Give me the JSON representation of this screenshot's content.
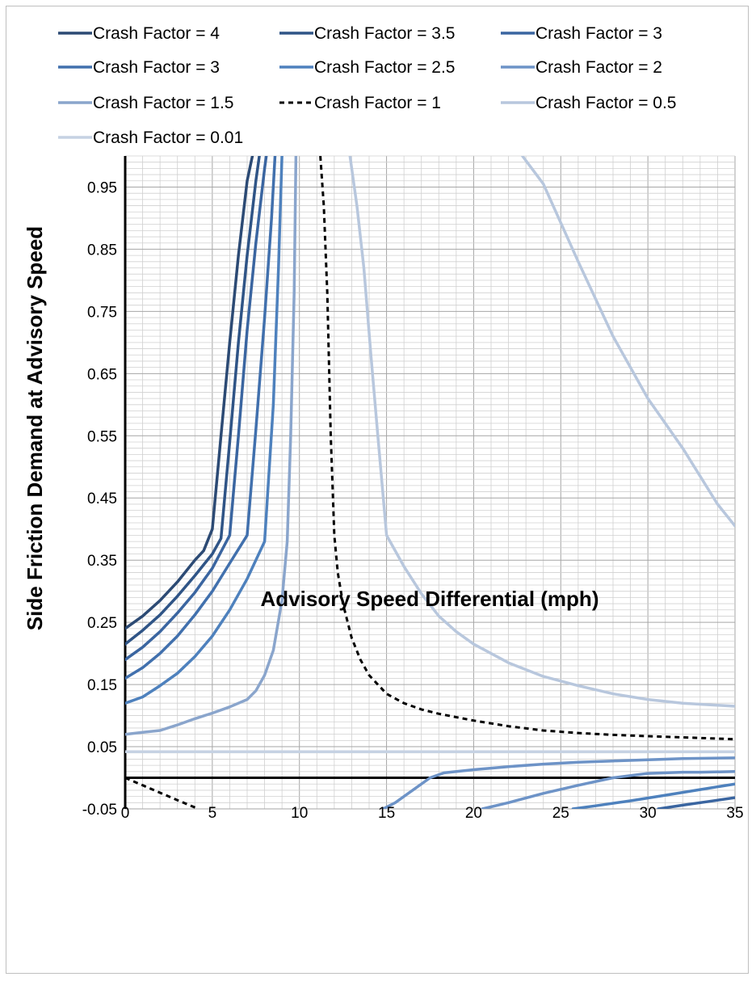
{
  "chart_data": {
    "type": "line",
    "xlabel": "Advisory Speed Differential (mph)",
    "ylabel": "Side Friction Demand at Advisory Speed",
    "xlim": [
      0,
      35
    ],
    "ylim": [
      -0.05,
      1.0
    ],
    "x_ticks": [
      0,
      5,
      10,
      15,
      20,
      25,
      30,
      35
    ],
    "x_tick_labels": [
      "0",
      "5",
      "10",
      "15",
      "20",
      "25",
      "30",
      "35"
    ],
    "y_ticks": [
      -0.05,
      0.05,
      0.15,
      0.25,
      0.35,
      0.45,
      0.55,
      0.65,
      0.75,
      0.85,
      0.95
    ],
    "y_tick_labels": [
      "-0.05",
      "0.05",
      "0.15",
      "0.25",
      "0.35",
      "0.45",
      "0.55",
      "0.65",
      "0.75",
      "0.85",
      "0.95"
    ],
    "grid": true,
    "legend_position": "top",
    "series": [
      {
        "name": "Crash Factor = 4",
        "color": "#2c4a74",
        "dash": false,
        "x": [
          0,
          1,
          2,
          3,
          4,
          4.5,
          5,
          5.5,
          6,
          6.5,
          7,
          7.3
        ],
        "y": [
          0.24,
          0.26,
          0.285,
          0.315,
          0.35,
          0.365,
          0.4,
          0.55,
          0.7,
          0.84,
          0.96,
          1.0
        ]
      },
      {
        "name": "Crash Factor = 3.5",
        "color": "#2f5486",
        "dash": false,
        "x": [
          0,
          1,
          2,
          3,
          4,
          5,
          5.5,
          6,
          6.5,
          7,
          7.5,
          7.7
        ],
        "y": [
          0.215,
          0.237,
          0.262,
          0.292,
          0.325,
          0.36,
          0.385,
          0.54,
          0.7,
          0.84,
          0.96,
          1.0
        ]
      },
      {
        "name": "Crash Factor = 3",
        "color": "#3a65a0",
        "dash": false,
        "x": [
          0,
          1,
          2,
          3,
          4,
          5,
          6,
          6.5,
          7,
          7.5,
          8,
          8.1
        ],
        "y": [
          0.19,
          0.21,
          0.235,
          0.265,
          0.298,
          0.337,
          0.39,
          0.55,
          0.72,
          0.86,
          0.98,
          1.0
        ]
      },
      {
        "name": "Crash Factor = 3",
        "color": "#4170ad",
        "dash": false,
        "x": [
          0,
          1,
          2,
          3,
          4,
          5,
          6,
          7,
          7.5,
          8,
          8.4,
          8.6
        ],
        "y": [
          0.16,
          0.177,
          0.2,
          0.228,
          0.262,
          0.3,
          0.345,
          0.39,
          0.56,
          0.74,
          0.9,
          1.0
        ]
      },
      {
        "name": "Crash Factor = 2.5",
        "color": "#4e81bd",
        "dash": false,
        "x": [
          0,
          1,
          2,
          3,
          4,
          5,
          6,
          7,
          8,
          8.5,
          8.8,
          9.0
        ],
        "y": [
          0.12,
          0.13,
          0.148,
          0.168,
          0.195,
          0.228,
          0.27,
          0.32,
          0.38,
          0.6,
          0.82,
          1.0
        ]
      },
      {
        "name": "Crash Factor = 2",
        "color": "#6d93c7",
        "dash": false,
        "x": [
          20.5,
          22,
          24,
          26,
          28,
          30,
          32,
          33,
          35
        ],
        "y": [
          -0.05,
          -0.04,
          -0.025,
          -0.012,
          0.0,
          0.007,
          0.009,
          0.009,
          0.01
        ]
      },
      {
        "name": "Crash Factor = 1.5",
        "color": "#8aa5cc",
        "dash": false,
        "x": [
          0,
          1,
          2,
          3,
          4,
          5,
          6,
          7,
          7.5,
          8,
          8.5,
          9,
          9.3,
          9.5,
          9.7,
          9.8
        ],
        "y": [
          0.07,
          0.073,
          0.076,
          0.085,
          0.095,
          0.104,
          0.114,
          0.126,
          0.14,
          0.165,
          0.205,
          0.285,
          0.38,
          0.55,
          0.78,
          1.0
        ]
      },
      {
        "name": "Crash Factor = 1",
        "color": "#000000",
        "dash": true,
        "x": [
          11.2,
          11.4,
          11.6,
          11.8,
          12,
          12.2,
          12.5,
          13,
          13.5,
          14,
          15,
          16,
          17,
          18,
          20,
          22,
          24,
          26,
          28,
          30,
          32,
          35
        ],
        "y": [
          1.0,
          0.92,
          0.78,
          0.55,
          0.39,
          0.33,
          0.28,
          0.225,
          0.19,
          0.165,
          0.135,
          0.12,
          0.11,
          0.103,
          0.092,
          0.083,
          0.076,
          0.072,
          0.069,
          0.067,
          0.065,
          0.062
        ]
      },
      {
        "name": "Crash Factor = 0.5",
        "color": "#b8c7dd",
        "dash": false,
        "x": [
          12.9,
          13.3,
          13.7,
          14.1,
          14.5,
          15,
          16,
          17,
          18,
          19,
          20,
          22,
          24,
          26,
          28,
          30,
          32,
          35
        ],
        "y": [
          1.0,
          0.92,
          0.82,
          0.68,
          0.55,
          0.39,
          0.34,
          0.296,
          0.26,
          0.235,
          0.215,
          0.185,
          0.163,
          0.148,
          0.135,
          0.126,
          0.12,
          0.115
        ]
      },
      {
        "name": "Crash Factor = 0.01",
        "color": "#c6d2e3",
        "dash": false,
        "x": [
          0,
          35
        ],
        "y": [
          0.042,
          0.042
        ]
      }
    ],
    "unlisted_curves": [
      {
        "color": "#000000",
        "dash": true,
        "x": [
          0,
          1,
          2,
          3,
          4.2
        ],
        "y": [
          0.0,
          -0.012,
          -0.024,
          -0.036,
          -0.05
        ]
      },
      {
        "color": "#6d93c7",
        "dash": false,
        "x": [
          14.8,
          15.5,
          16.5,
          17.5,
          18.3,
          20,
          22,
          24,
          26,
          28,
          30,
          32,
          35
        ],
        "y": [
          -0.05,
          -0.04,
          -0.02,
          0.0,
          0.008,
          0.013,
          0.018,
          0.022,
          0.025,
          0.027,
          0.029,
          0.031,
          0.032
        ]
      },
      {
        "color": "#4e81bd",
        "dash": false,
        "x": [
          25.7,
          27,
          29,
          31,
          33,
          35
        ],
        "y": [
          -0.05,
          -0.045,
          -0.037,
          -0.028,
          -0.019,
          -0.01
        ]
      },
      {
        "color": "#3a65a0",
        "dash": false,
        "x": [
          30.6,
          32,
          33.5,
          35
        ],
        "y": [
          -0.05,
          -0.044,
          -0.038,
          -0.032
        ]
      },
      {
        "color": "#b8c7dd",
        "dash": false,
        "x": [
          22.8,
          24,
          26,
          28,
          30,
          32,
          34,
          35
        ],
        "y": [
          1.0,
          0.955,
          0.83,
          0.71,
          0.61,
          0.53,
          0.44,
          0.405
        ]
      }
    ]
  }
}
